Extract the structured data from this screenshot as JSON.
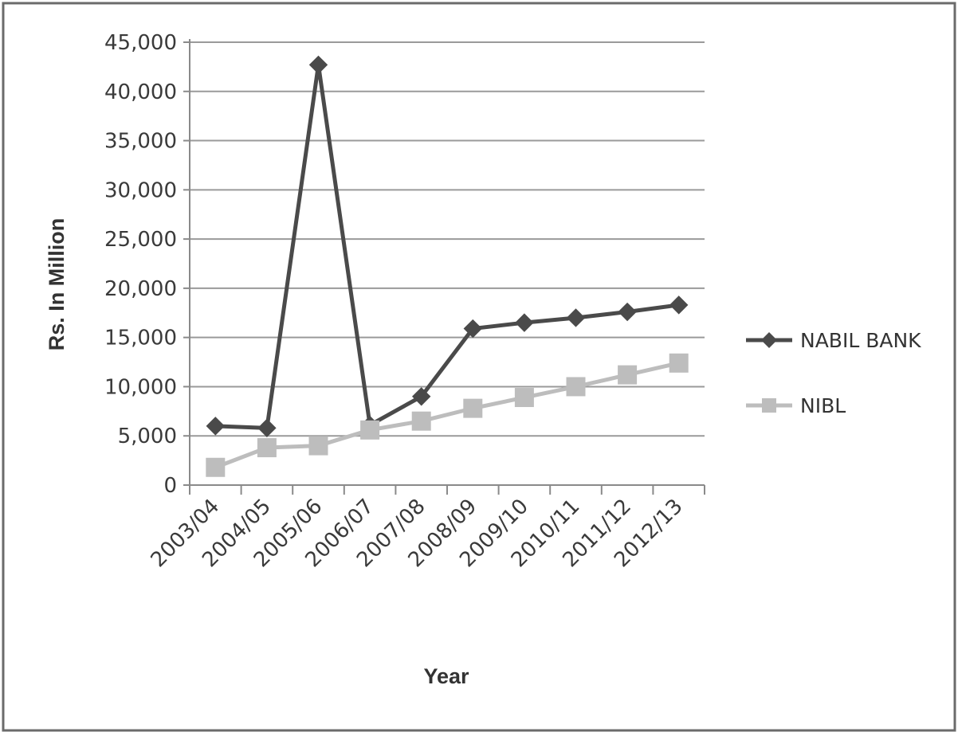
{
  "chart_data": {
    "type": "line",
    "title": "",
    "xlabel": "Year",
    "ylabel": "Rs. In Million",
    "categories": [
      "2003/04",
      "2004/05",
      "2005/06",
      "2006/07",
      "2007/08",
      "2008/09",
      "2009/10",
      "2010/11",
      "2011/12",
      "2012/13"
    ],
    "series": [
      {
        "name": "NABIL BANK",
        "color": "#4a4a4a",
        "marker": "diamond",
        "values": [
          6000,
          5800,
          42700,
          6100,
          9000,
          15900,
          16500,
          17000,
          17600,
          18300
        ]
      },
      {
        "name": "NIBL",
        "color": "#bdbdbd",
        "marker": "square",
        "values": [
          1800,
          3800,
          4000,
          5600,
          6500,
          7800,
          8900,
          10000,
          11200,
          12400
        ]
      }
    ],
    "ylim": [
      0,
      45000
    ],
    "yticks": [
      "0",
      "5,000",
      "10,000",
      "15,000",
      "20,000",
      "25,000",
      "30,000",
      "35,000",
      "40,000",
      "45,000"
    ],
    "grid": true,
    "legend": "right"
  }
}
